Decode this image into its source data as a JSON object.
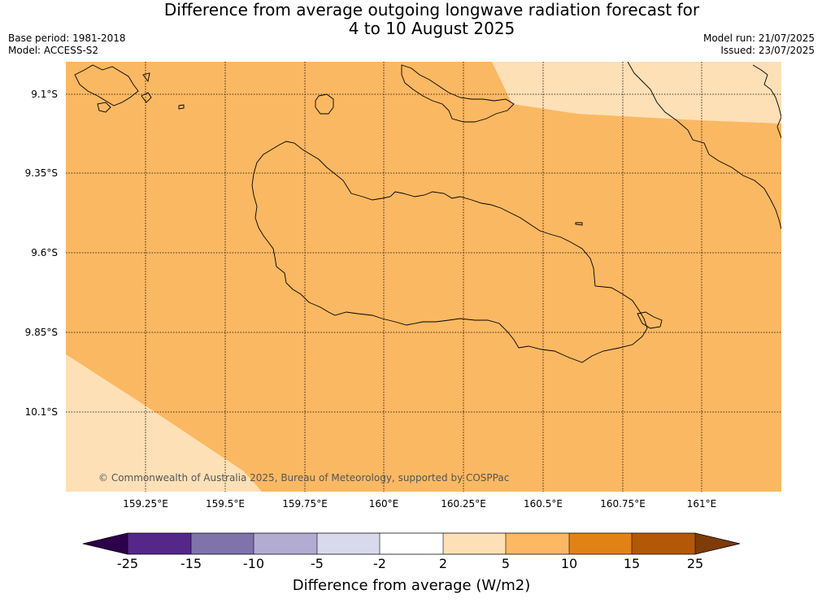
{
  "title": {
    "line1": "Difference from average outgoing longwave radiation forecast for",
    "line2": "4 to 10 August 2025"
  },
  "meta": {
    "base_period": "Base period: 1981-2018",
    "model": "Model: ACCESS-S2",
    "model_run": "Model run: 21/07/2025",
    "issued": "Issued: 23/07/2025"
  },
  "map": {
    "lat_ticks": [
      "9.1°S",
      "9.35°S",
      "9.6°S",
      "9.85°S",
      "10.1°S"
    ],
    "lon_ticks": [
      "159.25°E",
      "159.5°E",
      "159.75°E",
      "160°E",
      "160.25°E",
      "160.5°E",
      "160.75°E",
      "161°E"
    ],
    "copyright": "© Commonwealth of Australia 2025, Bureau of Meteorology, supported by COSPPac",
    "colors": {
      "main_fill": "#fbb862",
      "light_fill": "#fee0b6"
    }
  },
  "colorbar": {
    "title": "Difference from average (W/m2)",
    "labels": [
      "-25",
      "-15",
      "-10",
      "-5",
      "-2",
      "2",
      "5",
      "10",
      "15",
      "25"
    ],
    "colors": [
      "#2d004b",
      "#542788",
      "#8073ac",
      "#b2abd2",
      "#d8daeb",
      "#ffffff",
      "#fee0b6",
      "#fdb863",
      "#e08214",
      "#b35806",
      "#7f3b08"
    ]
  }
}
